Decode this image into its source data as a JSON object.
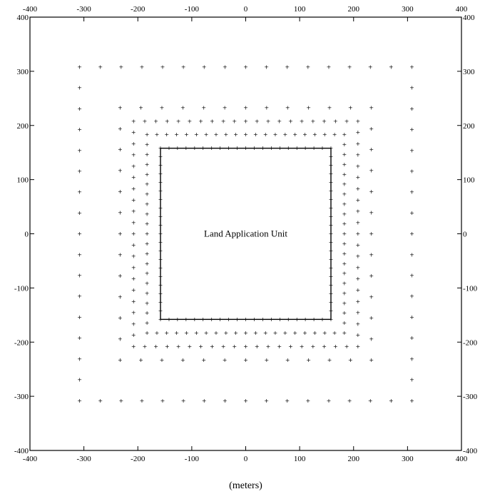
{
  "chart_data": {
    "type": "scatter",
    "title": "",
    "xlabel": "(meters)",
    "ylabel": "",
    "xlim": [
      -400,
      400
    ],
    "ylim": [
      -400,
      400
    ],
    "xticks": [
      -400,
      -300,
      -200,
      -100,
      0,
      100,
      200,
      300,
      400
    ],
    "yticks": [
      -400,
      -300,
      -200,
      -100,
      0,
      100,
      200,
      300,
      400
    ],
    "grid": false,
    "marker": "+",
    "annotations": [
      {
        "text": "Land Application Unit",
        "x": 0,
        "y": 0
      }
    ],
    "area_source": {
      "x": [
        -158,
        158
      ],
      "y": [
        -158,
        158
      ]
    },
    "receptor_rings": [
      {
        "half_width": 158,
        "step": 15.8
      },
      {
        "half_width": 183,
        "step": 18.3
      },
      {
        "half_width": 208,
        "step": 20.8
      },
      {
        "half_width": 233,
        "step": 38.8
      },
      {
        "half_width": 308,
        "step": 38.5
      }
    ]
  },
  "colors": {
    "line": "#000000",
    "background": "#ffffff"
  }
}
